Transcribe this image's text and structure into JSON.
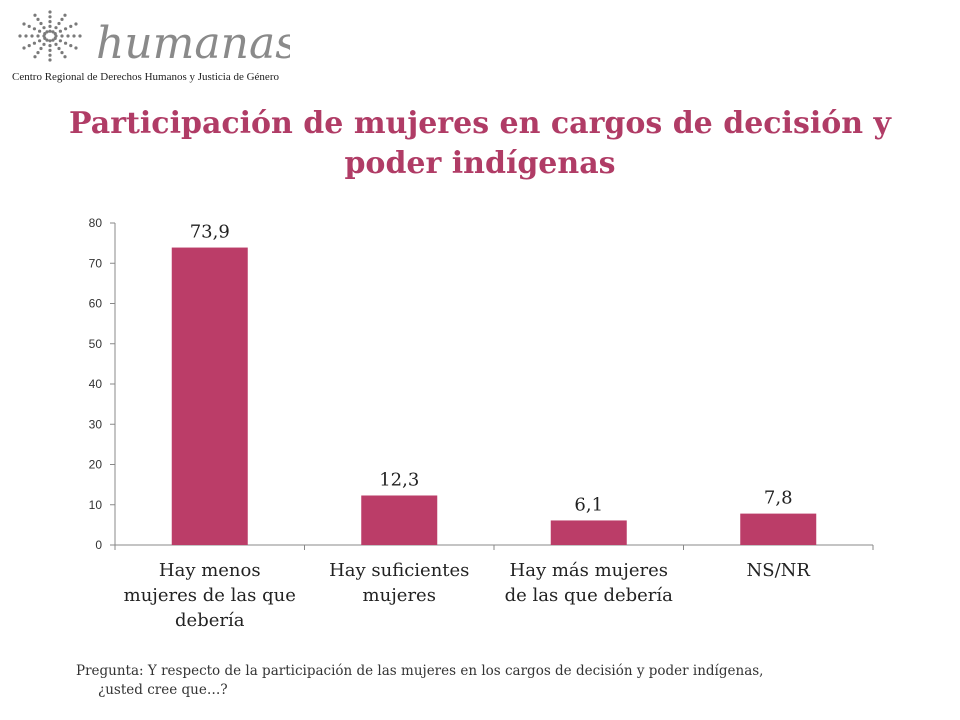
{
  "logo": {
    "wordmark": "humanas",
    "subtitle": "Centro Regional de Derechos Humanos y Justicia de Género"
  },
  "colors": {
    "accent": "#b03c66",
    "bar": "#bb3d68"
  },
  "chart_data": {
    "type": "bar",
    "title": "Participación de mujeres en cargos de decisión y poder indígenas",
    "categories": [
      "Hay menos mujeres de las que debería",
      "Hay suficientes mujeres",
      "Hay más mujeres de las que debería",
      "NS/NR"
    ],
    "values": [
      73.9,
      12.3,
      6.1,
      7.8
    ],
    "data_labels": [
      "73,9",
      "12,3",
      "6,1",
      "7,8"
    ],
    "ylim": [
      0,
      80
    ],
    "yticks": [
      0,
      10,
      20,
      30,
      40,
      50,
      60,
      70,
      80
    ],
    "xlabel": "",
    "ylabel": "",
    "grid": false,
    "legend": "none"
  },
  "footnote": {
    "line1": "Pregunta: Y respecto de la participación de las mujeres en los cargos de decisión y poder indígenas,",
    "line2": "¿usted cree que…?"
  }
}
